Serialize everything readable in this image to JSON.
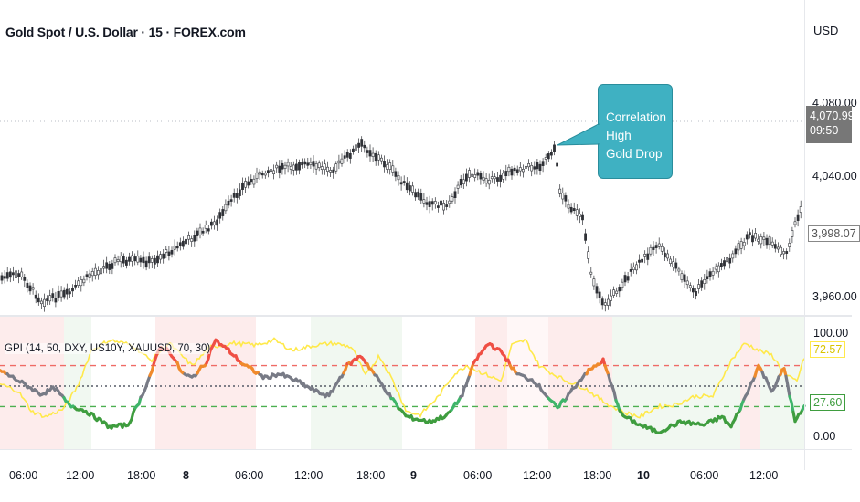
{
  "header": {
    "symbol_title": "Gold Spot / U.S. Dollar · 15 · FOREX.com",
    "currency": "USD"
  },
  "price_axis": {
    "ticks": [
      "4,080.00",
      "4,040.00",
      "3,960.00"
    ],
    "last_price": "4,070.99",
    "countdown": "09:50",
    "marker_price": "3,998.07"
  },
  "callout": {
    "line1": "Correlation High",
    "line2": "Gold Drop"
  },
  "indicator": {
    "label": "GPI (14, 50, DXY, US10Y, XAUUSD, 70, 30)",
    "axis_ticks": [
      "100.00",
      "0.00"
    ],
    "upper_tag": "72.57",
    "lower_tag": "27.60",
    "overbought": 70,
    "oversold": 30
  },
  "time_axis": {
    "labels": [
      "06:00",
      "12:00",
      "18:00",
      "8",
      "06:00",
      "12:00",
      "18:00",
      "9",
      "06:00",
      "12:00",
      "18:00",
      "10",
      "06:00",
      "12:00"
    ]
  },
  "colors": {
    "accent": "#3fb1c2",
    "up_red": "#ef4f44",
    "down_green": "#3f9d3f",
    "neutral": "#787b86",
    "signal_yellow": "#ffe94a"
  }
}
